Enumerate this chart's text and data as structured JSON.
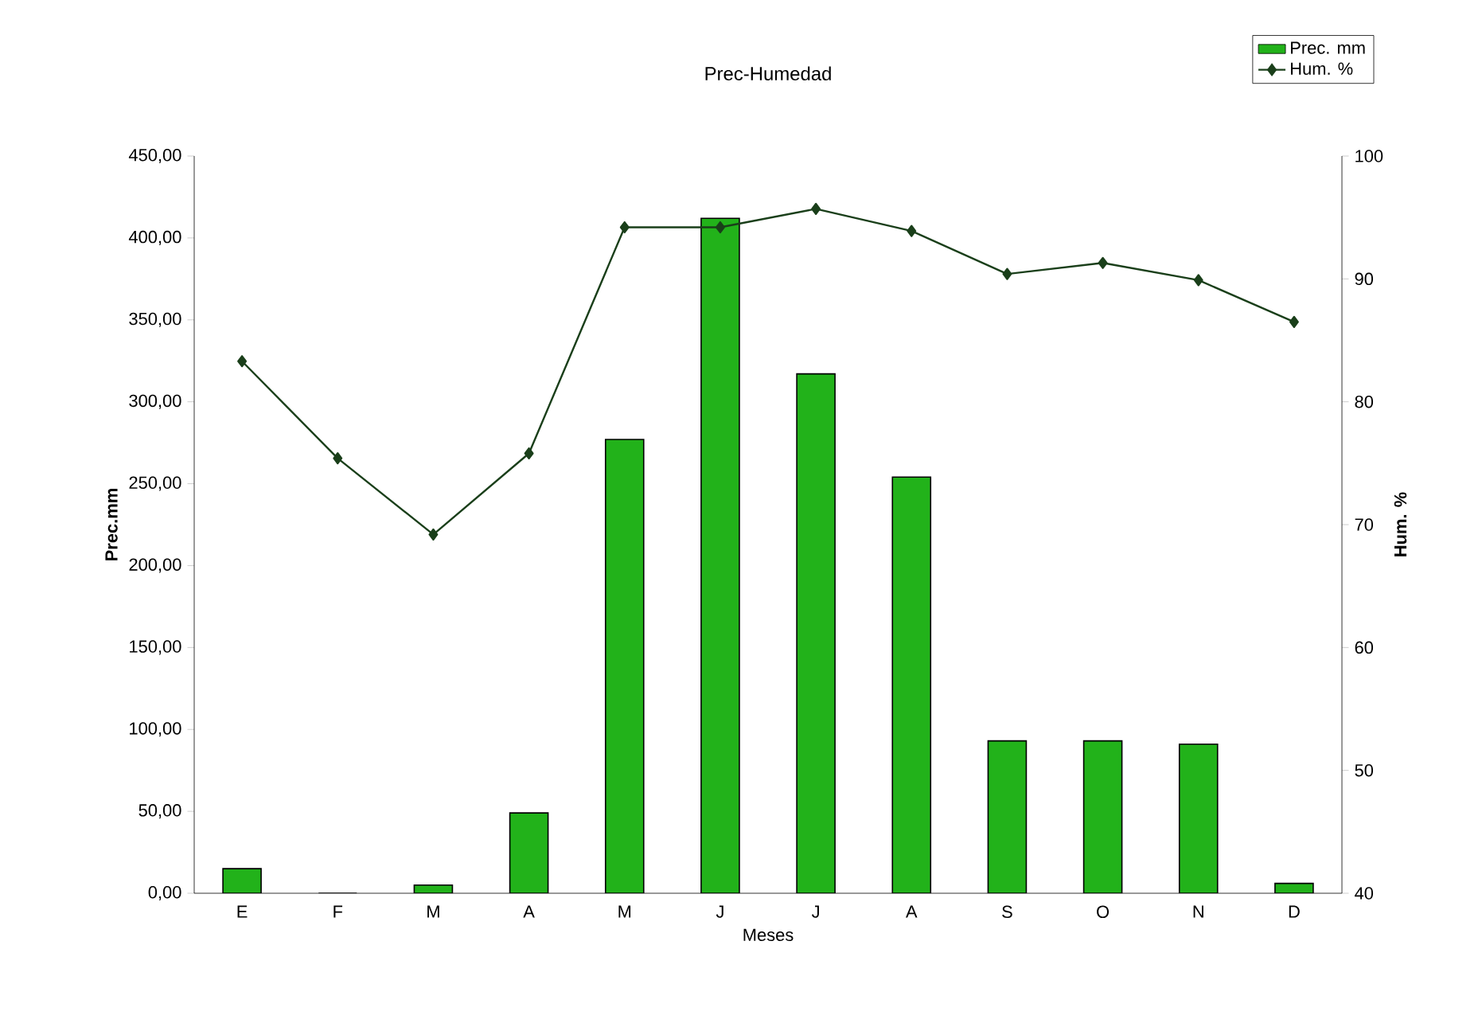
{
  "chart_data": {
    "type": "bar",
    "title": "Prec-Humedad",
    "xlabel": "Meses",
    "ylabel": "Prec.mm",
    "y2label": "Hum. %",
    "categories": [
      "E",
      "F",
      "M",
      "A",
      "M",
      "J",
      "J",
      "A",
      "S",
      "O",
      "N",
      "D"
    ],
    "series": [
      {
        "name": "Prec. mm",
        "color": "#22b21a",
        "values": [
          15,
          0,
          5,
          49,
          277,
          412,
          317,
          254,
          93,
          93,
          91,
          6
        ]
      },
      {
        "name": "Hum. %",
        "type": "line",
        "axis": "y2",
        "color": "#1a3f1a",
        "values": [
          83.3,
          75.4,
          69.2,
          75.8,
          94.2,
          94.2,
          95.7,
          93.9,
          90.4,
          91.3,
          89.9,
          86.5
        ]
      }
    ],
    "ylim": [
      0,
      450
    ],
    "yticks": [
      {
        "value": 0,
        "label": "0,00"
      },
      {
        "value": 50,
        "label": "50,00"
      },
      {
        "value": 100,
        "label": "100,00"
      },
      {
        "value": 150,
        "label": "150,00"
      },
      {
        "value": 200,
        "label": "200,00"
      },
      {
        "value": 250,
        "label": "250,00"
      },
      {
        "value": 300,
        "label": "300,00"
      },
      {
        "value": 350,
        "label": "350,00"
      },
      {
        "value": 400,
        "label": "400,00"
      },
      {
        "value": 450,
        "label": "450,00"
      }
    ],
    "y2lim": [
      40,
      100
    ],
    "y2ticks": [
      40,
      50,
      60,
      70,
      80,
      90,
      100
    ],
    "legend": "top right",
    "marker": "diamond"
  }
}
